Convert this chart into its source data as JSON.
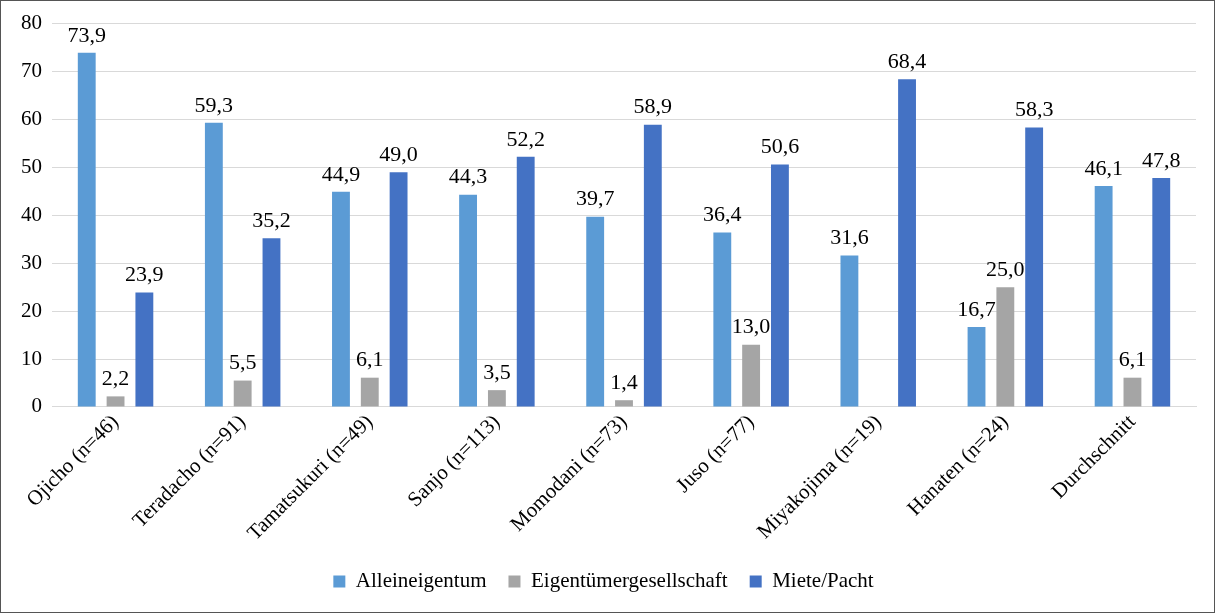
{
  "chart_data": {
    "type": "bar",
    "categories": [
      "Ojicho (n=46)",
      "Teradacho (n=91)",
      "Tamatsukuri (n=49)",
      "Sanjo (n=113)",
      "Momodani (n=73)",
      "Juso (n=77)",
      "Miyakojima (n=19)",
      "Hanaten (n=24)",
      "Durchschnitt"
    ],
    "series": [
      {
        "name": "Alleineigentum",
        "color": "#5b9bd5",
        "values": [
          73.9,
          59.3,
          44.9,
          44.3,
          39.7,
          36.4,
          31.6,
          16.7,
          46.1
        ],
        "value_labels": [
          "73,9",
          "59,3",
          "44,9",
          "44,3",
          "39,7",
          "36,4",
          "31,6",
          "16,7",
          "46,1"
        ]
      },
      {
        "name": "Eigentümergesellschaft",
        "color": "#a5a5a5",
        "values": [
          2.2,
          5.5,
          6.1,
          3.5,
          1.4,
          13.0,
          null,
          25.0,
          6.1
        ],
        "value_labels": [
          "2,2",
          "5,5",
          "6,1",
          "3,5",
          "1,4",
          "13,0",
          null,
          "25,0",
          "6,1"
        ]
      },
      {
        "name": "Miete/Pacht",
        "color": "#4472c4",
        "values": [
          23.9,
          35.2,
          49.0,
          52.2,
          58.9,
          50.6,
          68.4,
          58.3,
          47.8
        ],
        "value_labels": [
          "23,9",
          "35,2",
          "49,0",
          "52,2",
          "58,9",
          "50,6",
          "68,4",
          "58,3",
          "47,8"
        ]
      }
    ],
    "ylim": [
      0,
      80
    ],
    "yticks": [
      0,
      10,
      20,
      30,
      40,
      50,
      60,
      70,
      80
    ],
    "grid": "y",
    "legend": "bottom"
  }
}
